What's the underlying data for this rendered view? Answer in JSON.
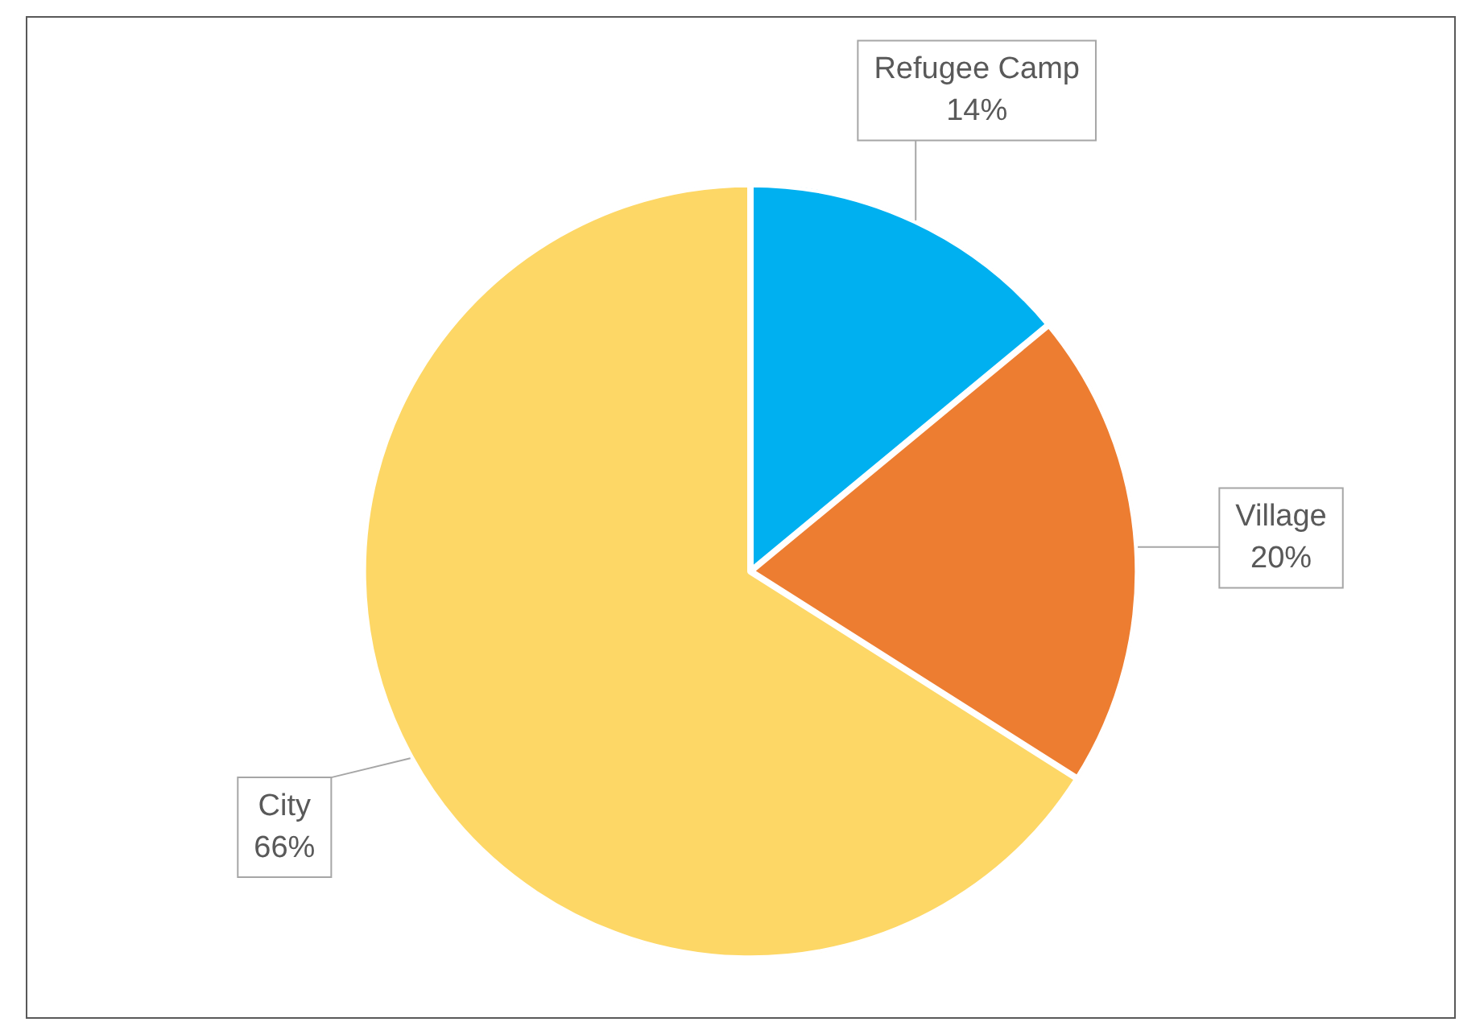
{
  "chart_data": {
    "type": "pie",
    "categories": [
      "Refugee Camp",
      "Village",
      "City"
    ],
    "values": [
      14,
      20,
      66
    ],
    "colors": [
      "#00b0f0",
      "#ed7d31",
      "#fdd766"
    ],
    "value_labels": [
      "14%",
      "20%",
      "66%"
    ],
    "legend": false
  }
}
